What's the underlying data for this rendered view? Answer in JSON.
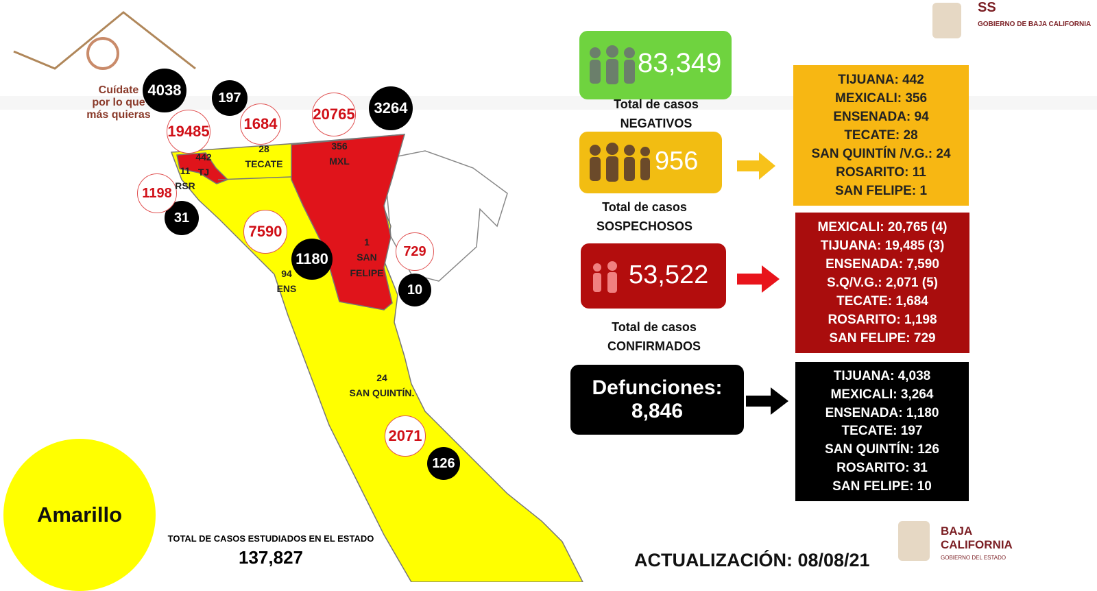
{
  "logo": {
    "lines": [
      "Cuídate",
      "por lo que",
      "más quieras"
    ]
  },
  "header": {
    "agency": "SS",
    "government": "GOBIERNO DE BAJA CALIFORNIA"
  },
  "map": {
    "deaths": [
      "4038",
      "197",
      "3264",
      "31",
      "1180",
      "10",
      "126"
    ],
    "confirmed": [
      "19485",
      "1684",
      "20765",
      "1198",
      "7590",
      "729",
      "2071"
    ],
    "regions": [
      {
        "count": "442",
        "label": "TJ"
      },
      {
        "count": "11",
        "label": "RSR"
      },
      {
        "count": "28",
        "label": "TECATE"
      },
      {
        "count": "356",
        "label": "MXL"
      },
      {
        "count": "1",
        "label": "SAN FELIPE"
      },
      {
        "count": "94",
        "label": "ENS"
      },
      {
        "count": "24",
        "label": "SAN QUINTÍN."
      }
    ]
  },
  "status": "Amarillo",
  "total_studied": {
    "label": "TOTAL DE CASOS ESTUDIADOS EN EL ESTADO",
    "value": "137,827"
  },
  "negatives": {
    "value": "83,349",
    "caption": [
      "Total de casos",
      "NEGATIVOS"
    ]
  },
  "suspected": {
    "value": "956",
    "caption": [
      "Total de casos",
      "SOSPECHOSOS"
    ],
    "list": [
      "TIJUANA: 442",
      "MEXICALI: 356",
      "ENSENADA: 94",
      "TECATE: 28",
      "SAN QUINTÍN /V.G.: 24",
      "ROSARITO: 11",
      "SAN FELIPE: 1"
    ]
  },
  "confirmed": {
    "value": "53,522",
    "caption": [
      "Total de casos",
      "CONFIRMADOS"
    ],
    "list": [
      "MEXICALI: 20,765 (4)",
      "TIJUANA: 19,485 (3)",
      "ENSENADA: 7,590",
      "S.Q/V.G.: 2,071 (5)",
      "TECATE: 1,684",
      "ROSARITO: 1,198",
      "SAN FELIPE: 729"
    ]
  },
  "deaths": {
    "title": "Defunciones:",
    "value": "8,846",
    "list": [
      "TIJUANA: 4,038",
      "MEXICALI: 3,264",
      "ENSENADA: 1,180",
      "TECATE: 197",
      "SAN QUINTÍN: 126",
      "ROSARITO: 31",
      "SAN FELIPE: 10"
    ]
  },
  "update": "ACTUALIZACIÓN: 08/08/21",
  "footer_logo": {
    "name": "BAJA CALIFORNIA",
    "subtitle": "GOBIERNO DEL ESTADO"
  }
}
